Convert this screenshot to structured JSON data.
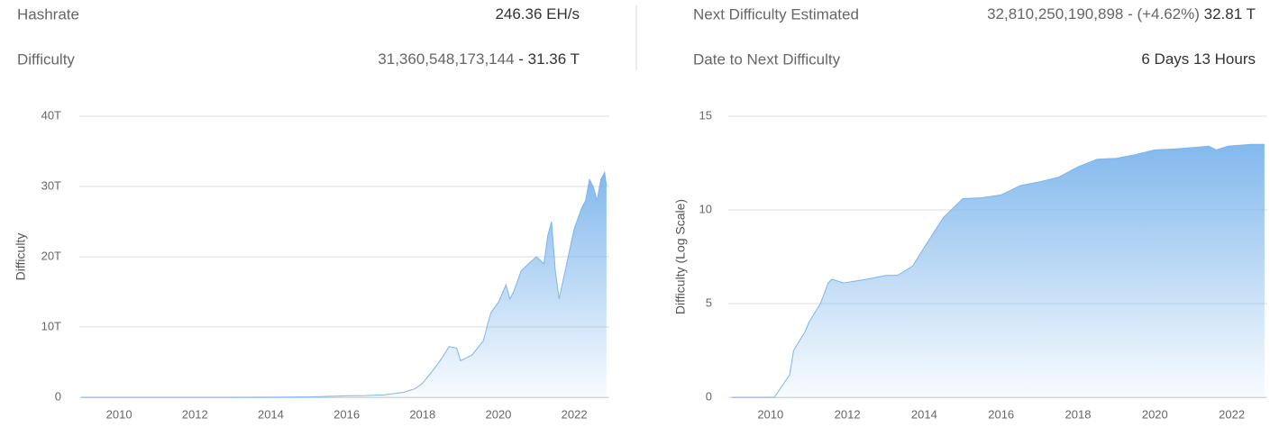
{
  "stats": [
    {
      "label": "Hashrate",
      "value_parts": [
        "246.36 EH/s"
      ]
    },
    {
      "label": "Difficulty",
      "value_parts": [
        "31,360,548,173,144",
        " - 31.36 T"
      ]
    },
    {
      "label": "Next Difficulty Estimated",
      "value_parts": [
        "32,810,250,190,898 - (+4.62%)",
        " 32.81 T"
      ]
    },
    {
      "label": "Date to Next Difficulty",
      "value_parts": [
        "6 Days 13 Hours"
      ]
    }
  ],
  "chart_data": [
    {
      "type": "area",
      "y_label": "Difficulty",
      "x": [
        2009.0,
        2010.0,
        2011.0,
        2012.0,
        2013.0,
        2014.0,
        2015.0,
        2016.0,
        2016.5,
        2017.0,
        2017.5,
        2017.8,
        2018.0,
        2018.3,
        2018.5,
        2018.7,
        2018.9,
        2019.0,
        2019.3,
        2019.6,
        2019.8,
        2020.0,
        2020.2,
        2020.3,
        2020.4,
        2020.6,
        2020.8,
        2021.0,
        2021.2,
        2021.3,
        2021.4,
        2021.5,
        2021.6,
        2021.8,
        2022.0,
        2022.2,
        2022.3,
        2022.4,
        2022.5,
        2022.6,
        2022.7,
        2022.8,
        2022.85
      ],
      "series": [
        {
          "name": "Difficulty",
          "color": "#7cb5ec",
          "values": [
            0,
            0,
            0,
            0,
            0,
            0.01,
            0.05,
            0.2,
            0.25,
            0.35,
            0.7,
            1.2,
            2.0,
            4.0,
            5.5,
            7.2,
            7.0,
            5.2,
            6.0,
            8.0,
            12.0,
            13.5,
            16.0,
            14.0,
            15.0,
            18.0,
            19.0,
            20.0,
            19.0,
            23.0,
            25.0,
            18.0,
            14.0,
            19.0,
            24.0,
            27.0,
            28.0,
            31.0,
            30.0,
            28.0,
            31.0,
            32.0,
            30.0
          ]
        }
      ],
      "xlim": [
        2009.0,
        2022.9
      ],
      "xticks": [
        2010,
        2012,
        2014,
        2016,
        2018,
        2020,
        2022
      ],
      "ylim": [
        0,
        40
      ],
      "yticks": [
        0,
        {
          "value": 10,
          "label": "10T"
        },
        {
          "value": 20,
          "label": "20T"
        },
        {
          "value": 30,
          "label": "30T"
        },
        {
          "value": 40,
          "label": "40T"
        }
      ],
      "grid": true
    },
    {
      "type": "area",
      "y_label": "Difficulty (Log Scale)",
      "x": [
        2009.0,
        2010.1,
        2010.3,
        2010.5,
        2010.6,
        2010.9,
        2011.0,
        2011.3,
        2011.5,
        2011.6,
        2011.9,
        2012.5,
        2013.0,
        2013.3,
        2013.7,
        2014.0,
        2014.5,
        2014.9,
        2015.0,
        2015.5,
        2016.0,
        2016.5,
        2017.0,
        2017.5,
        2018.0,
        2018.5,
        2019.0,
        2019.5,
        2020.0,
        2020.5,
        2021.0,
        2021.4,
        2021.6,
        2021.9,
        2022.5,
        2022.85
      ],
      "series": [
        {
          "name": "Difficulty (Log Scale)",
          "color": "#7cb5ec",
          "values": [
            0,
            0,
            0.6,
            1.2,
            2.5,
            3.5,
            4.0,
            5.0,
            6.1,
            6.3,
            6.1,
            6.3,
            6.5,
            6.5,
            7.0,
            8.0,
            9.6,
            10.4,
            10.6,
            10.65,
            10.8,
            11.3,
            11.5,
            11.75,
            12.3,
            12.7,
            12.75,
            12.95,
            13.2,
            13.25,
            13.33,
            13.4,
            13.2,
            13.4,
            13.5,
            13.5
          ]
        }
      ],
      "xlim": [
        2008.95,
        2022.9
      ],
      "xticks": [
        2010,
        2012,
        2014,
        2016,
        2018,
        2020,
        2022
      ],
      "ylim": [
        0,
        15
      ],
      "yticks": [
        0,
        5,
        10,
        15
      ],
      "grid": true
    }
  ]
}
